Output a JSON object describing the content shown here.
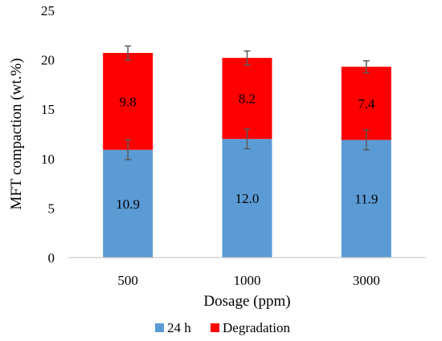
{
  "chart_data": {
    "type": "bar",
    "stacked": true,
    "categories": [
      "500",
      "1000",
      "3000"
    ],
    "series": [
      {
        "name": "24 h",
        "color": "#5b9bd5",
        "values": [
          10.9,
          12.0,
          11.9
        ],
        "labels": [
          "10.9",
          "12.0",
          "11.9"
        ],
        "error": [
          1.0,
          1.0,
          1.0
        ]
      },
      {
        "name": "Degradation",
        "color": "#ff0000",
        "values": [
          9.8,
          8.2,
          7.4
        ],
        "labels": [
          "9.8",
          "8.2",
          "7.4"
        ],
        "error": [
          0.7,
          0.7,
          0.6
        ]
      }
    ],
    "xlabel": "Dosage (ppm)",
    "ylabel": "MFT compaction (wt.%)",
    "ylim": [
      0,
      25
    ],
    "yticks": [
      "0",
      "5",
      "10",
      "15",
      "20",
      "25"
    ],
    "grid": false,
    "legend": "bottom",
    "axis_color": "#bfbfbf",
    "error_color": "#595959"
  }
}
